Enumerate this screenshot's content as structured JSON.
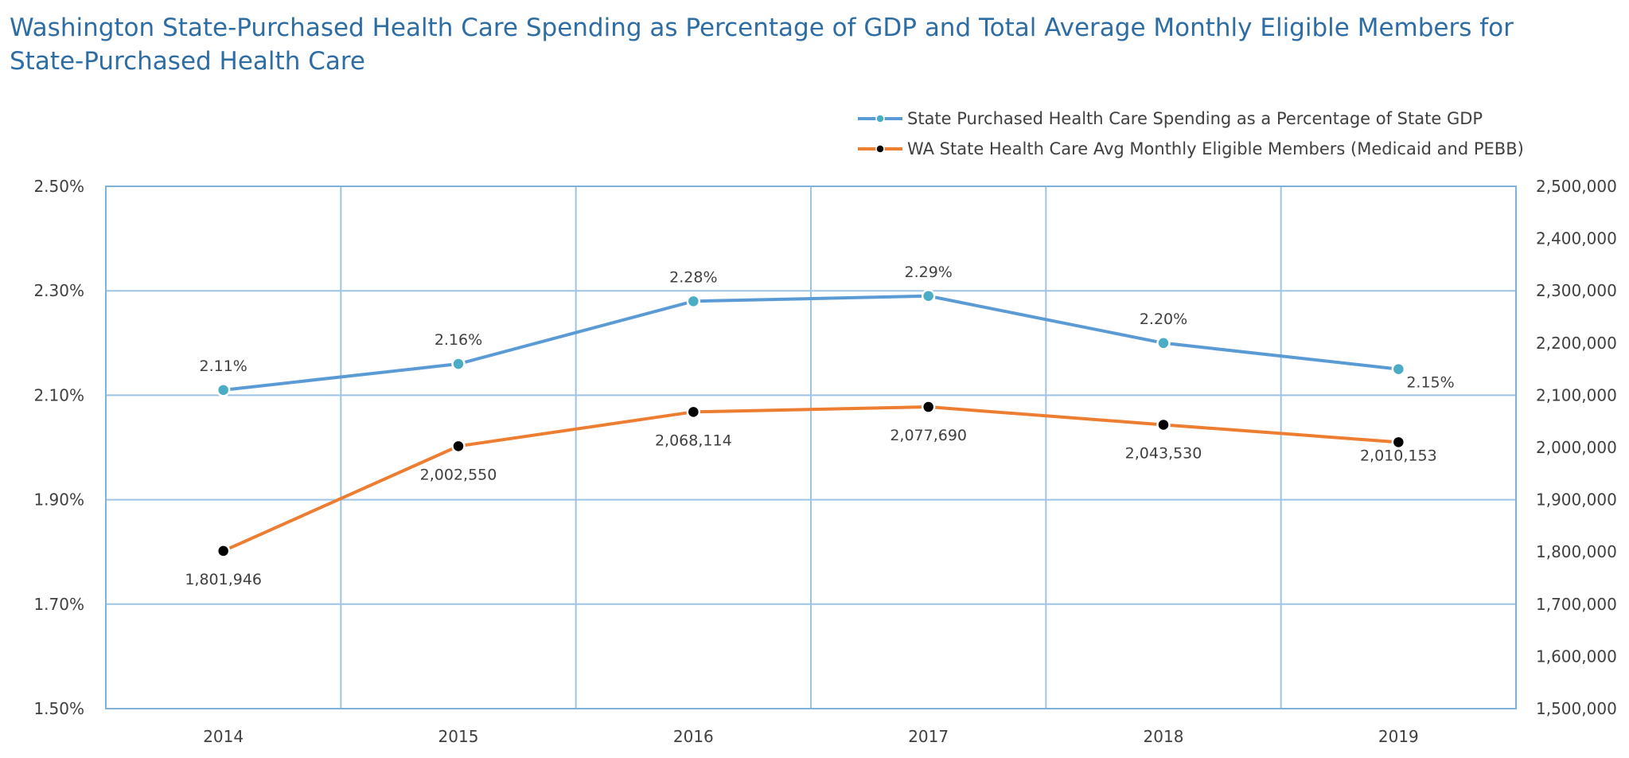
{
  "chart_data": {
    "type": "line",
    "title": "Washington State-Purchased Health Care Spending as Percentage of GDP and Total Average Monthly Eligible Members for State-Purchased Health Care",
    "categories": [
      "2014",
      "2015",
      "2016",
      "2017",
      "2018",
      "2019"
    ],
    "y_left": {
      "ylim": [
        1.5,
        2.5
      ],
      "ticks": [
        "1.50%",
        "1.70%",
        "1.90%",
        "2.10%",
        "2.30%",
        "2.50%"
      ]
    },
    "y_right": {
      "ylim": [
        1500000,
        2500000
      ],
      "ticks": [
        "1,500,000",
        "1,600,000",
        "1,700,000",
        "1,800,000",
        "1,900,000",
        "2,000,000",
        "2,100,000",
        "2,200,000",
        "2,300,000",
        "2,400,000",
        "2,500,000"
      ]
    },
    "grid": true,
    "legend_position": "top-right",
    "series": [
      {
        "name": "State Purchased Health Care Spending as a Percentage of State GDP",
        "axis": "left",
        "color": "#5b9bd5",
        "marker_color": "#4bacc6",
        "values": [
          2.11,
          2.16,
          2.28,
          2.29,
          2.2,
          2.15
        ],
        "labels": [
          "2.11%",
          "2.16%",
          "2.28%",
          "2.29%",
          "2.20%",
          "2.15%"
        ]
      },
      {
        "name": "WA State Health Care Avg Monthly Eligible Members  (Medicaid and PEBB)",
        "axis": "right",
        "color": "#ed7d31",
        "marker_color": "#000000",
        "values": [
          1801946,
          2002550,
          2068114,
          2077690,
          2043530,
          2010153
        ],
        "labels": [
          "1,801,946",
          "2,002,550",
          "2,068,114",
          "2,077,690",
          "2,043,530",
          "2,010,153"
        ]
      }
    ]
  }
}
